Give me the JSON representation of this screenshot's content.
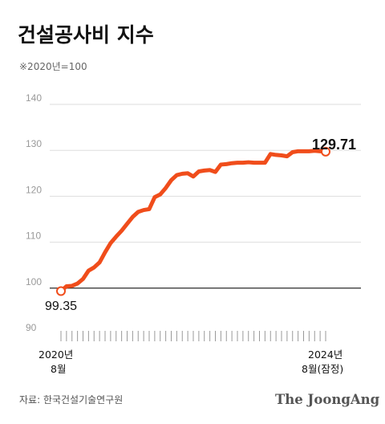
{
  "title": "건설공사비 지수",
  "subtitle": "※2020년=100",
  "source": "자료: 한국건설기술연구원",
  "brand": "The JoongAng",
  "colors": {
    "line": "#f04d1b",
    "baseline": "#111111",
    "grid": "#dddddd",
    "ticks": "#999999"
  },
  "chart_data": {
    "type": "line",
    "title": "건설공사비 지수",
    "subtitle": "※2020년=100",
    "ylim": [
      90,
      140
    ],
    "y_ticks": [
      "140",
      "130",
      "120",
      "110",
      "100",
      "90"
    ],
    "y_tick_values": [
      140,
      130,
      120,
      110,
      100,
      90
    ],
    "grid": true,
    "baseline": 100,
    "x_start_label": [
      "2020년",
      "8월"
    ],
    "x_end_label": [
      "2024년",
      "8월(잠정)"
    ],
    "start_value_label": "99.35",
    "end_value_label": "129.71",
    "x": [
      "2020-08",
      "2020-09",
      "2020-10",
      "2020-11",
      "2020-12",
      "2021-01",
      "2021-02",
      "2021-03",
      "2021-04",
      "2021-05",
      "2021-06",
      "2021-07",
      "2021-08",
      "2021-09",
      "2021-10",
      "2021-11",
      "2021-12",
      "2022-01",
      "2022-02",
      "2022-03",
      "2022-04",
      "2022-05",
      "2022-06",
      "2022-07",
      "2022-08",
      "2022-09",
      "2022-10",
      "2022-11",
      "2022-12",
      "2023-01",
      "2023-02",
      "2023-03",
      "2023-04",
      "2023-05",
      "2023-06",
      "2023-07",
      "2023-08",
      "2023-09",
      "2023-10",
      "2023-11",
      "2023-12",
      "2024-01",
      "2024-02",
      "2024-03",
      "2024-04",
      "2024-05",
      "2024-06",
      "2024-07",
      "2024-08"
    ],
    "series": [
      {
        "values": [
          99.35,
          100.4,
          100.5,
          101.0,
          102.0,
          103.8,
          104.5,
          105.6,
          107.8,
          109.8,
          111.2,
          112.5,
          114.0,
          115.5,
          116.6,
          117.0,
          117.2,
          119.8,
          120.4,
          121.8,
          123.5,
          124.6,
          124.9,
          125.0,
          124.3,
          125.4,
          125.6,
          125.7,
          125.3,
          126.9,
          127.0,
          127.2,
          127.3,
          127.3,
          127.4,
          127.3,
          127.3,
          127.3,
          129.2,
          129.0,
          128.9,
          128.7,
          129.6,
          129.8,
          129.8,
          129.8,
          129.9,
          129.8,
          129.71
        ]
      }
    ]
  }
}
